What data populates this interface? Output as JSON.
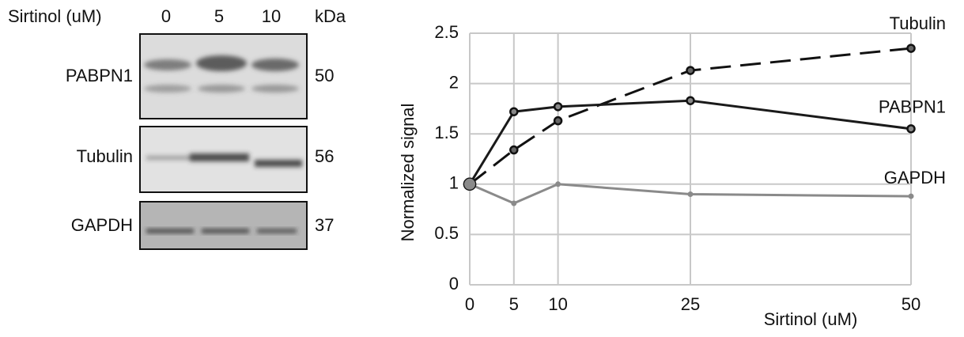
{
  "blot": {
    "header": "Sirtinol (uM)",
    "lanes": [
      "0",
      "5",
      "10"
    ],
    "kda_header": "kDa",
    "rows": [
      {
        "protein": "PABPN1",
        "kda": "50"
      },
      {
        "protein": "Tubulin",
        "kda": "56"
      },
      {
        "protein": "GAPDH",
        "kda": "37"
      }
    ]
  },
  "chart_data": {
    "type": "line",
    "x_label": "Sirtinol (uM)",
    "y_label": "Normalized signal",
    "x": [
      0,
      5,
      10,
      25,
      50
    ],
    "series": [
      {
        "name": "Tubulin",
        "color": "#111111",
        "line_style": "dashed",
        "values": [
          1,
          1.34,
          1.63,
          2.13,
          2.35
        ]
      },
      {
        "name": "PABPN1",
        "color": "#1a1a1a",
        "line_style": "solid",
        "values": [
          1,
          1.72,
          1.77,
          1.83,
          1.55
        ]
      },
      {
        "name": "GAPDH",
        "color": "#8a8a8a",
        "line_style": "solid",
        "values": [
          1,
          0.81,
          1.0,
          0.9,
          0.88
        ]
      }
    ],
    "xlim": [
      0,
      50
    ],
    "xticks": [
      0,
      5,
      10,
      25,
      50
    ],
    "ylim": [
      0,
      2.5
    ],
    "yticks": [
      0,
      0.5,
      1,
      1.5,
      2,
      2.5
    ],
    "grid": true
  }
}
